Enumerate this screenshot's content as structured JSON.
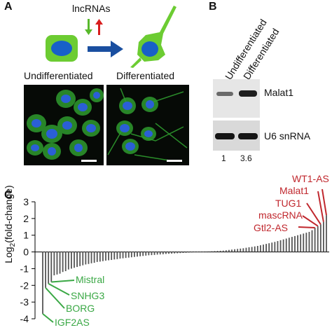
{
  "panels": {
    "a": {
      "letter": "A",
      "lncrnas_label": "lncRNAs",
      "undiff_label": "Undifferentiated",
      "diff_label": "Differentiated",
      "colors": {
        "cell": "#6ccc32",
        "nucleus": "#1860c8",
        "arrow": "#1a4fa0",
        "up": "#d81e1e",
        "down": "#58b92b"
      }
    },
    "b": {
      "letter": "B",
      "lane1": "Undifferentiated",
      "lane2": "Differentiated",
      "malat1": "Malat1",
      "u6": "U6 snRNA",
      "quant1": "1",
      "quant2": "3.6"
    },
    "c": {
      "letter": "C",
      "ylabel_main": "Log",
      "ylabel_sub": "2",
      "ylabel_rest": "(fold-change)",
      "up_genes": [
        "WT1-AS",
        "Malat1",
        "TUG1",
        "mascRNA",
        "Gtl2-AS"
      ],
      "down_genes": [
        "Mistral",
        "SNHG3",
        "BORG",
        "IGF2AS"
      ],
      "up_color": "#c0272d",
      "down_color": "#3aa845"
    }
  },
  "chart_data": {
    "type": "bar",
    "title": "",
    "xlabel": "",
    "ylabel": "Log2(fold-change)",
    "ylim": [
      -4,
      3
    ],
    "yticks": [
      "3",
      "2",
      "1",
      "0",
      "-1",
      "-2",
      "-3",
      "-4"
    ],
    "values": [
      -3.7,
      -2.15,
      -1.9,
      -1.8,
      -1.4,
      -1.35,
      -1.3,
      -1.2,
      -1.15,
      -1.05,
      -1.0,
      -0.95,
      -0.9,
      -0.85,
      -0.8,
      -0.75,
      -0.72,
      -0.68,
      -0.65,
      -0.6,
      -0.58,
      -0.55,
      -0.52,
      -0.5,
      -0.48,
      -0.45,
      -0.43,
      -0.4,
      -0.38,
      -0.36,
      -0.34,
      -0.32,
      -0.3,
      -0.28,
      -0.26,
      -0.24,
      -0.22,
      -0.2,
      -0.19,
      -0.18,
      -0.16,
      -0.15,
      -0.14,
      -0.12,
      -0.11,
      -0.1,
      -0.09,
      -0.08,
      -0.07,
      -0.06,
      -0.05,
      -0.04,
      -0.03,
      -0.02,
      -0.02,
      -0.01,
      0.01,
      0.02,
      0.03,
      0.04,
      0.05,
      0.06,
      0.07,
      0.08,
      0.1,
      0.12,
      0.14,
      0.16,
      0.18,
      0.2,
      0.22,
      0.25,
      0.28,
      0.3,
      0.33,
      0.36,
      0.4,
      0.44,
      0.48,
      0.52,
      0.56,
      0.6,
      0.65,
      0.7,
      0.75,
      0.8,
      0.85,
      0.9,
      0.95,
      1.0,
      1.05,
      1.1,
      1.15,
      1.2,
      1.3,
      1.45,
      1.55,
      1.65,
      1.8,
      2.2
    ]
  }
}
